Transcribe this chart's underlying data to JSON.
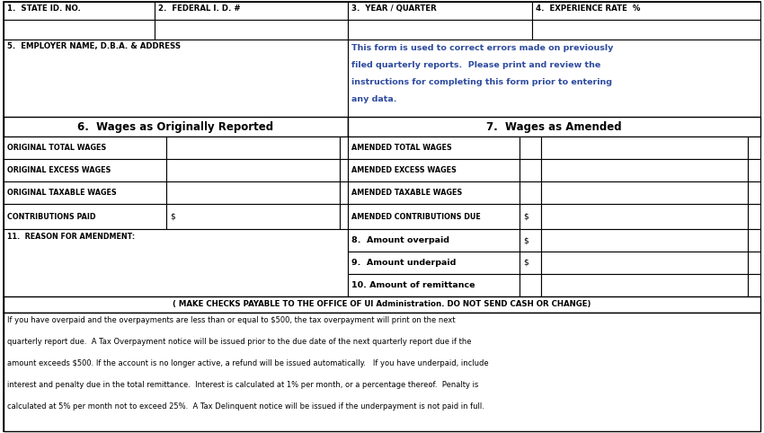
{
  "bg_color": "#ffffff",
  "blue_text_color": "#2E4B9E",
  "black_text_color": "#000000",
  "fig_width": 8.5,
  "fig_height": 4.82,
  "row1_labels": [
    "1.  STATE ID. NO.",
    "2.  FEDERAL I. D. #",
    "3.  YEAR / QUARTER",
    "4.  EXPERIENCE RATE  %"
  ],
  "employer_label": "5.  EMPLOYER NAME, D.B.A. & ADDRESS",
  "info_text": "This form is used to correct errors made on previously\nfiled quarterly reports.  Please print and review the\ninstructions for completing this form prior to entering\nany data.",
  "section6_title": "6.  Wages as Originally Reported",
  "section7_title": "7.  Wages as Amended",
  "left_rows": [
    "ORIGINAL TOTAL WAGES",
    "ORIGINAL EXCESS WAGES",
    "ORIGINAL TAXABLE WAGES",
    "CONTRIBUTIONS PAID"
  ],
  "right_rows": [
    "AMENDED TOTAL WAGES",
    "AMENDED EXCESS WAGES",
    "AMENDED TAXABLE WAGES",
    "AMENDED CONTRIBUTIONS DUE"
  ],
  "amount_rows": [
    "8.  Amount overpaid",
    "9.  Amount underpaid",
    "10. Amount of remittance"
  ],
  "reason_label": "11.  REASON FOR AMENDMENT:",
  "check_notice": "( MAKE CHECKS PAYABLE TO THE OFFICE OF UI Administration. DO NOT SEND CASH OR CHANGE)",
  "footer_text": "If you have overpaid and the overpayments are less than or equal to $500, the tax overpayment will print on the next\nquarterly report due.  A Tax Overpayment notice will be issued prior to the due date of the next quarterly report due if the\namount exceeds $500. If the account is no longer active, a refund will be issued automatically.   If you have underpaid, include\ninterest and penalty due in the total remittance.  Interest is calculated at 1% per month, or a percentage thereof.  Penalty is\ncalculated at 5% per month not to exceed 25%.  A Tax Delinquent notice will be issued if the underpayment is not paid in full."
}
